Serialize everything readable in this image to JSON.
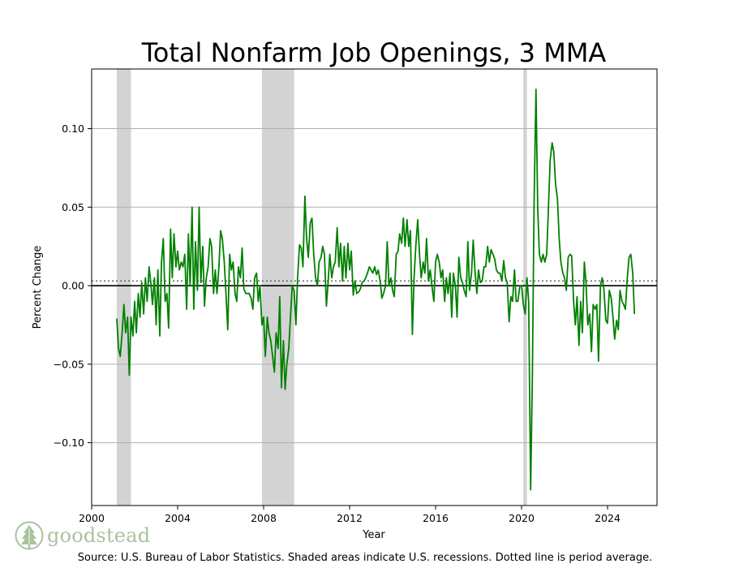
{
  "chart_data": {
    "type": "line",
    "title": "Total Nonfarm Job Openings, 3 MMA",
    "xlabel": "Year",
    "ylabel": "Percent Change",
    "xlim": [
      2000,
      2026.3
    ],
    "ylim": [
      -0.14,
      0.138
    ],
    "x_ticks": [
      2000,
      2004,
      2008,
      2012,
      2016,
      2020,
      2024
    ],
    "y_ticks": [
      0.1,
      0.05,
      0.0,
      -0.05,
      -0.1
    ],
    "y_tick_labels": [
      "0.10",
      "0.05",
      "0.00",
      "−0.05",
      "−0.10"
    ],
    "grid": "horizontal",
    "zero_line": 0.0,
    "average_line": 0.003,
    "line_color": "#008000",
    "shade_color": "#d3d3d3",
    "recessions": [
      [
        2001.17,
        2001.83
      ],
      [
        2007.92,
        2009.42
      ],
      [
        2020.08,
        2020.25
      ]
    ],
    "series": [
      {
        "values": [
          [
            2001.17,
            -0.021
          ],
          [
            2001.25,
            -0.04
          ],
          [
            2001.33,
            -0.045
          ],
          [
            2001.42,
            -0.03
          ],
          [
            2001.5,
            -0.012
          ],
          [
            2001.58,
            -0.03
          ],
          [
            2001.67,
            -0.02
          ],
          [
            2001.75,
            -0.057
          ],
          [
            2001.83,
            -0.02
          ],
          [
            2001.92,
            -0.032
          ],
          [
            2002.0,
            -0.01
          ],
          [
            2002.08,
            -0.03
          ],
          [
            2002.17,
            -0.005
          ],
          [
            2002.25,
            -0.02
          ],
          [
            2002.33,
            0.002
          ],
          [
            2002.42,
            -0.018
          ],
          [
            2002.5,
            0.005
          ],
          [
            2002.58,
            -0.01
          ],
          [
            2002.67,
            0.012
          ],
          [
            2002.75,
            0.002
          ],
          [
            2002.83,
            -0.012
          ],
          [
            2002.92,
            0.005
          ],
          [
            2003.0,
            -0.025
          ],
          [
            2003.08,
            0.01
          ],
          [
            2003.17,
            -0.032
          ],
          [
            2003.25,
            0.015
          ],
          [
            2003.33,
            0.03
          ],
          [
            2003.42,
            -0.01
          ],
          [
            2003.5,
            -0.005
          ],
          [
            2003.58,
            -0.027
          ],
          [
            2003.67,
            0.036
          ],
          [
            2003.75,
            0.005
          ],
          [
            2003.83,
            0.033
          ],
          [
            2003.92,
            0.012
          ],
          [
            2004.0,
            0.022
          ],
          [
            2004.08,
            0.01
          ],
          [
            2004.17,
            0.015
          ],
          [
            2004.25,
            0.012
          ],
          [
            2004.33,
            0.02
          ],
          [
            2004.42,
            -0.015
          ],
          [
            2004.5,
            0.033
          ],
          [
            2004.58,
            0.0
          ],
          [
            2004.67,
            0.05
          ],
          [
            2004.75,
            -0.015
          ],
          [
            2004.83,
            0.028
          ],
          [
            2004.92,
            -0.003
          ],
          [
            2005.0,
            0.05
          ],
          [
            2005.08,
            0.002
          ],
          [
            2005.17,
            0.025
          ],
          [
            2005.25,
            -0.013
          ],
          [
            2005.33,
            0.005
          ],
          [
            2005.42,
            0.012
          ],
          [
            2005.5,
            0.03
          ],
          [
            2005.58,
            0.025
          ],
          [
            2005.67,
            -0.005
          ],
          [
            2005.75,
            0.01
          ],
          [
            2005.83,
            -0.005
          ],
          [
            2005.92,
            0.012
          ],
          [
            2006.0,
            0.035
          ],
          [
            2006.08,
            0.03
          ],
          [
            2006.17,
            0.015
          ],
          [
            2006.25,
            -0.005
          ],
          [
            2006.33,
            -0.028
          ],
          [
            2006.42,
            0.02
          ],
          [
            2006.5,
            0.01
          ],
          [
            2006.58,
            0.015
          ],
          [
            2006.67,
            -0.005
          ],
          [
            2006.75,
            -0.01
          ],
          [
            2006.83,
            0.012
          ],
          [
            2006.92,
            0.005
          ],
          [
            2007.0,
            0.024
          ],
          [
            2007.08,
            -0.002
          ],
          [
            2007.17,
            -0.005
          ],
          [
            2007.25,
            -0.005
          ],
          [
            2007.33,
            -0.005
          ],
          [
            2007.42,
            -0.008
          ],
          [
            2007.5,
            -0.015
          ],
          [
            2007.58,
            0.005
          ],
          [
            2007.67,
            0.008
          ],
          [
            2007.75,
            -0.01
          ],
          [
            2007.83,
            0.0
          ],
          [
            2007.92,
            -0.025
          ],
          [
            2008.0,
            -0.02
          ],
          [
            2008.08,
            -0.045
          ],
          [
            2008.17,
            -0.02
          ],
          [
            2008.25,
            -0.03
          ],
          [
            2008.33,
            -0.035
          ],
          [
            2008.42,
            -0.045
          ],
          [
            2008.5,
            -0.055
          ],
          [
            2008.58,
            -0.03
          ],
          [
            2008.67,
            -0.04
          ],
          [
            2008.75,
            -0.007
          ],
          [
            2008.83,
            -0.065
          ],
          [
            2008.92,
            -0.035
          ],
          [
            2009.0,
            -0.066
          ],
          [
            2009.08,
            -0.05
          ],
          [
            2009.17,
            -0.04
          ],
          [
            2009.25,
            -0.02
          ],
          [
            2009.33,
            0.0
          ],
          [
            2009.42,
            -0.003
          ],
          [
            2009.5,
            -0.025
          ],
          [
            2009.58,
            0.005
          ],
          [
            2009.67,
            0.026
          ],
          [
            2009.75,
            0.024
          ],
          [
            2009.83,
            0.012
          ],
          [
            2009.92,
            0.057
          ],
          [
            2010.0,
            0.03
          ],
          [
            2010.08,
            0.018
          ],
          [
            2010.17,
            0.04
          ],
          [
            2010.25,
            0.043
          ],
          [
            2010.33,
            0.02
          ],
          [
            2010.42,
            0.005
          ],
          [
            2010.5,
            0.0
          ],
          [
            2010.58,
            0.015
          ],
          [
            2010.67,
            0.018
          ],
          [
            2010.75,
            0.025
          ],
          [
            2010.83,
            0.02
          ],
          [
            2010.92,
            -0.013
          ],
          [
            2011.0,
            0.002
          ],
          [
            2011.08,
            0.02
          ],
          [
            2011.17,
            0.005
          ],
          [
            2011.25,
            0.012
          ],
          [
            2011.33,
            0.015
          ],
          [
            2011.42,
            0.037
          ],
          [
            2011.5,
            0.012
          ],
          [
            2011.58,
            0.027
          ],
          [
            2011.67,
            0.003
          ],
          [
            2011.75,
            0.025
          ],
          [
            2011.83,
            0.005
          ],
          [
            2011.92,
            0.027
          ],
          [
            2012.0,
            0.01
          ],
          [
            2012.08,
            0.022
          ],
          [
            2012.17,
            -0.006
          ],
          [
            2012.25,
            0.003
          ],
          [
            2012.33,
            -0.005
          ],
          [
            2012.42,
            -0.004
          ],
          [
            2012.5,
            -0.002
          ],
          [
            2012.58,
            0.002
          ],
          [
            2012.67,
            0.003
          ],
          [
            2012.75,
            0.005
          ],
          [
            2012.83,
            0.008
          ],
          [
            2012.92,
            0.012
          ],
          [
            2013.0,
            0.01
          ],
          [
            2013.08,
            0.008
          ],
          [
            2013.17,
            0.012
          ],
          [
            2013.25,
            0.007
          ],
          [
            2013.33,
            0.01
          ],
          [
            2013.42,
            0.003
          ],
          [
            2013.5,
            -0.008
          ],
          [
            2013.58,
            -0.005
          ],
          [
            2013.67,
            0.0
          ],
          [
            2013.75,
            0.028
          ],
          [
            2013.83,
            0.0
          ],
          [
            2013.92,
            0.005
          ],
          [
            2014.0,
            -0.003
          ],
          [
            2014.08,
            -0.007
          ],
          [
            2014.17,
            0.02
          ],
          [
            2014.25,
            0.022
          ],
          [
            2014.33,
            0.033
          ],
          [
            2014.42,
            0.027
          ],
          [
            2014.5,
            0.043
          ],
          [
            2014.58,
            0.025
          ],
          [
            2014.67,
            0.042
          ],
          [
            2014.75,
            0.025
          ],
          [
            2014.83,
            0.035
          ],
          [
            2014.92,
            -0.031
          ],
          [
            2015.0,
            0.005
          ],
          [
            2015.08,
            0.025
          ],
          [
            2015.17,
            0.042
          ],
          [
            2015.25,
            0.02
          ],
          [
            2015.33,
            0.005
          ],
          [
            2015.42,
            0.015
          ],
          [
            2015.5,
            0.008
          ],
          [
            2015.58,
            0.03
          ],
          [
            2015.67,
            0.003
          ],
          [
            2015.75,
            0.01
          ],
          [
            2015.83,
            0.0
          ],
          [
            2015.92,
            -0.01
          ],
          [
            2016.0,
            0.015
          ],
          [
            2016.08,
            0.02
          ],
          [
            2016.17,
            0.015
          ],
          [
            2016.25,
            0.005
          ],
          [
            2016.33,
            0.01
          ],
          [
            2016.42,
            -0.01
          ],
          [
            2016.5,
            0.005
          ],
          [
            2016.58,
            -0.005
          ],
          [
            2016.67,
            0.008
          ],
          [
            2016.75,
            -0.02
          ],
          [
            2016.83,
            0.008
          ],
          [
            2016.92,
            0.0
          ],
          [
            2017.0,
            -0.02
          ],
          [
            2017.08,
            0.018
          ],
          [
            2017.17,
            0.005
          ],
          [
            2017.25,
            0.002
          ],
          [
            2017.33,
            -0.003
          ],
          [
            2017.42,
            -0.007
          ],
          [
            2017.5,
            0.028
          ],
          [
            2017.58,
            -0.003
          ],
          [
            2017.67,
            0.008
          ],
          [
            2017.75,
            0.029
          ],
          [
            2017.83,
            0.01
          ],
          [
            2017.92,
            -0.005
          ],
          [
            2018.0,
            0.01
          ],
          [
            2018.08,
            0.002
          ],
          [
            2018.17,
            0.003
          ],
          [
            2018.25,
            0.012
          ],
          [
            2018.33,
            0.012
          ],
          [
            2018.42,
            0.025
          ],
          [
            2018.5,
            0.015
          ],
          [
            2018.58,
            0.023
          ],
          [
            2018.67,
            0.02
          ],
          [
            2018.75,
            0.017
          ],
          [
            2018.83,
            0.01
          ],
          [
            2018.92,
            0.008
          ],
          [
            2019.0,
            0.008
          ],
          [
            2019.08,
            0.003
          ],
          [
            2019.17,
            0.016
          ],
          [
            2019.25,
            0.005
          ],
          [
            2019.33,
            0.002
          ],
          [
            2019.42,
            -0.023
          ],
          [
            2019.5,
            -0.007
          ],
          [
            2019.58,
            -0.01
          ],
          [
            2019.67,
            0.01
          ],
          [
            2019.75,
            -0.01
          ],
          [
            2019.83,
            -0.01
          ],
          [
            2019.92,
            0.0
          ],
          [
            2020.0,
            0.0
          ],
          [
            2020.08,
            -0.012
          ],
          [
            2020.17,
            -0.018
          ],
          [
            2020.25,
            0.005
          ],
          [
            2020.33,
            -0.01
          ],
          [
            2020.42,
            -0.13
          ],
          [
            2020.5,
            -0.06
          ],
          [
            2020.58,
            0.05
          ],
          [
            2020.67,
            0.125
          ],
          [
            2020.75,
            0.05
          ],
          [
            2020.83,
            0.02
          ],
          [
            2020.92,
            0.015
          ],
          [
            2021.0,
            0.02
          ],
          [
            2021.08,
            0.015
          ],
          [
            2021.17,
            0.02
          ],
          [
            2021.25,
            0.05
          ],
          [
            2021.33,
            0.08
          ],
          [
            2021.42,
            0.091
          ],
          [
            2021.5,
            0.085
          ],
          [
            2021.58,
            0.065
          ],
          [
            2021.67,
            0.055
          ],
          [
            2021.75,
            0.03
          ],
          [
            2021.83,
            0.015
          ],
          [
            2021.92,
            0.008
          ],
          [
            2022.0,
            0.005
          ],
          [
            2022.08,
            -0.003
          ],
          [
            2022.17,
            0.018
          ],
          [
            2022.25,
            0.02
          ],
          [
            2022.33,
            0.019
          ],
          [
            2022.42,
            -0.01
          ],
          [
            2022.5,
            -0.025
          ],
          [
            2022.58,
            -0.007
          ],
          [
            2022.67,
            -0.038
          ],
          [
            2022.75,
            -0.01
          ],
          [
            2022.83,
            -0.03
          ],
          [
            2022.92,
            0.015
          ],
          [
            2023.0,
            0.002
          ],
          [
            2023.08,
            -0.025
          ],
          [
            2023.17,
            -0.018
          ],
          [
            2023.25,
            -0.042
          ],
          [
            2023.33,
            -0.012
          ],
          [
            2023.42,
            -0.015
          ],
          [
            2023.5,
            -0.012
          ],
          [
            2023.58,
            -0.048
          ],
          [
            2023.67,
            0.0
          ],
          [
            2023.75,
            0.005
          ],
          [
            2023.83,
            -0.002
          ],
          [
            2023.92,
            -0.022
          ],
          [
            2024.0,
            -0.024
          ],
          [
            2024.08,
            -0.003
          ],
          [
            2024.17,
            -0.008
          ],
          [
            2024.25,
            -0.02
          ],
          [
            2024.33,
            -0.034
          ],
          [
            2024.42,
            -0.022
          ],
          [
            2024.5,
            -0.028
          ],
          [
            2024.58,
            -0.003
          ],
          [
            2024.67,
            -0.01
          ],
          [
            2024.75,
            -0.012
          ],
          [
            2024.83,
            -0.015
          ],
          [
            2024.92,
            0.005
          ],
          [
            2025.0,
            0.018
          ],
          [
            2025.08,
            0.02
          ],
          [
            2025.17,
            0.008
          ],
          [
            2025.25,
            -0.018
          ]
        ]
      }
    ]
  },
  "footer": {
    "source": "Source: U.S. Bureau of Labor Statistics. Shaded areas indicate U.S. recessions. Dotted line is period average.",
    "logo_text": "goodstead",
    "logo_icon": "tree-icon"
  }
}
